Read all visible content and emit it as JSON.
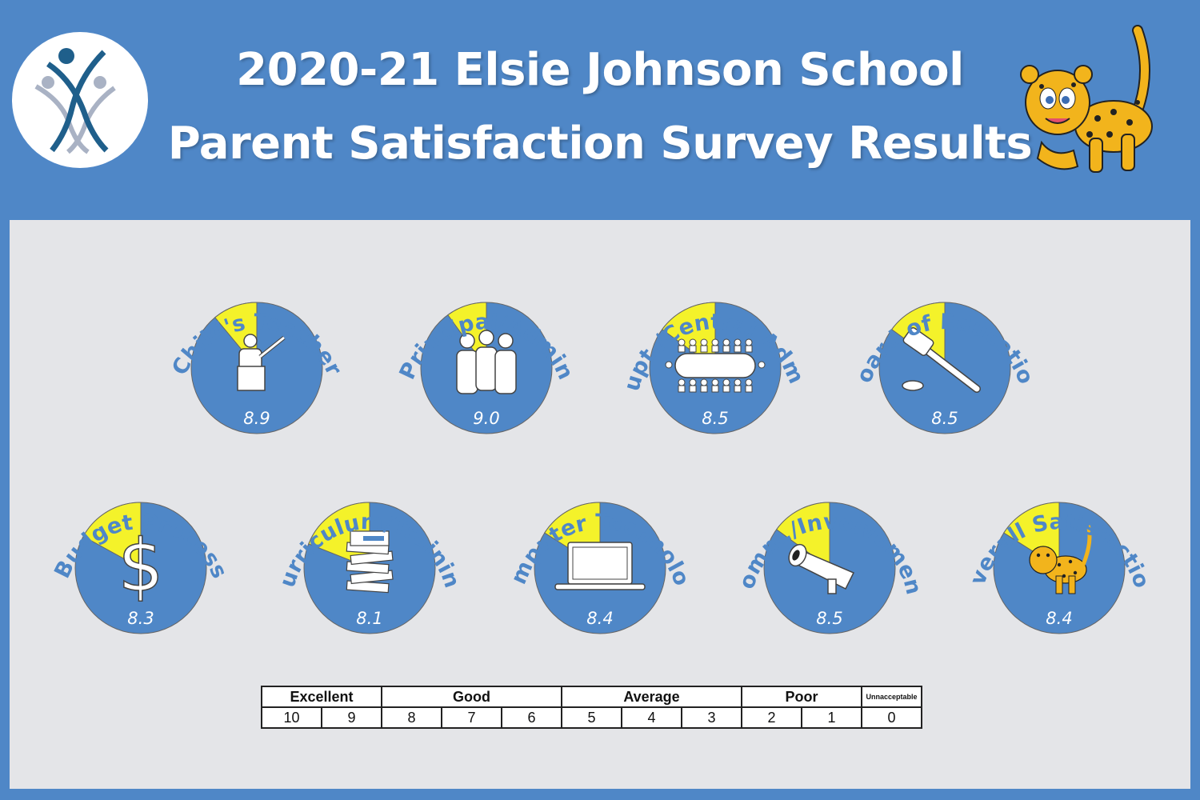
{
  "header": {
    "title_line1": "2020-21 Elsie Johnson School",
    "title_line2": "Parent Satisfaction Survey Results"
  },
  "colors": {
    "background": "#4f87c7",
    "panel": "#e4e5e8",
    "pie_fill": "#4f87c7",
    "highlight": "#f4f22a",
    "label": "#4f87c7"
  },
  "chart_data": {
    "type": "pie",
    "scale_max": 10,
    "items": [
      {
        "label": "Child's Teacher",
        "value": 8.9,
        "display": "8.9",
        "icon": "teacher-icon"
      },
      {
        "label": "Principal/Admin",
        "value": 9.0,
        "display": "9.0",
        "icon": "group-icon"
      },
      {
        "label": "Supt./Central Admin",
        "value": 8.5,
        "display": "8.5",
        "icon": "conference-table-icon"
      },
      {
        "label": "Board of Education",
        "value": 8.5,
        "display": "8.5",
        "icon": "gavel-icon"
      },
      {
        "label": "Budget Process",
        "value": 8.3,
        "display": "8.3",
        "icon": "dollar-icon"
      },
      {
        "label": "Curriculum/Training",
        "value": 8.1,
        "display": "8.1",
        "icon": "books-icon"
      },
      {
        "label": "Computer Technology",
        "value": 8.4,
        "display": "8.4",
        "icon": "laptop-icon"
      },
      {
        "label": "Comm./Involvement",
        "value": 8.5,
        "display": "8.5",
        "icon": "megaphone-icon"
      },
      {
        "label": "Overall Satisfaction",
        "value": 8.4,
        "display": "8.4",
        "icon": "leopard-icon"
      }
    ]
  },
  "scale": {
    "categories": [
      "Excellent",
      "Good",
      "Average",
      "Poor",
      "Unnacceptable"
    ],
    "numbers": [
      "10",
      "9",
      "8",
      "7",
      "6",
      "5",
      "4",
      "3",
      "2",
      "1",
      "0"
    ]
  }
}
